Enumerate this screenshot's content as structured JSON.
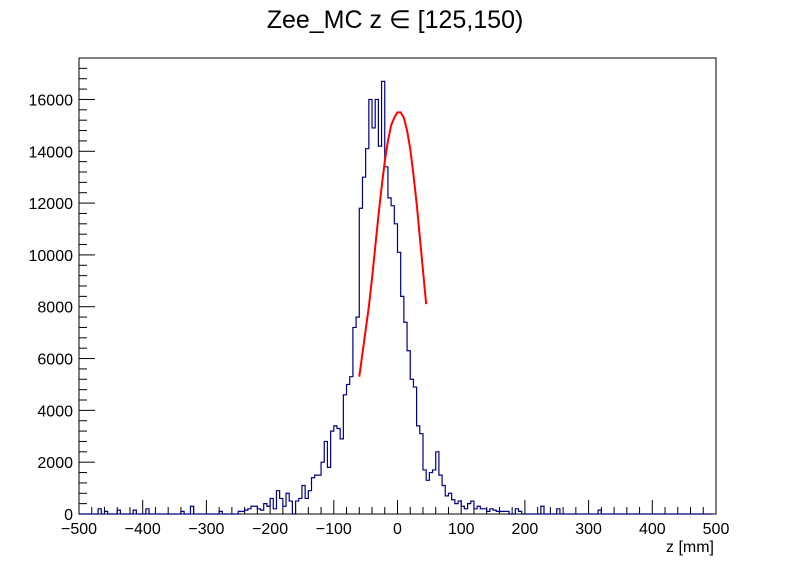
{
  "chart_data": {
    "type": "histogram",
    "title": "Zee_MC z  ∈ [125,150)",
    "xlabel": "z [mm]",
    "ylabel": "",
    "xlim": [
      -500,
      500
    ],
    "ylim": [
      0,
      17600
    ],
    "bin_width": 5,
    "x_ticks": [
      -500,
      -400,
      -300,
      -200,
      -100,
      0,
      100,
      200,
      300,
      400,
      500
    ],
    "x_tick_labels": [
      "−500",
      "−400",
      "−300",
      "−200",
      "−100",
      "0",
      "100",
      "200",
      "300",
      "400",
      "500"
    ],
    "y_ticks": [
      0,
      2000,
      4000,
      6000,
      8000,
      10000,
      12000,
      14000,
      16000
    ],
    "y_tick_labels": [
      "0",
      "2000",
      "4000",
      "6000",
      "8000",
      "10000",
      "12000",
      "14000",
      "16000"
    ],
    "colors": {
      "histogram": "#000080",
      "fit": "#ff0000",
      "frame": "#000000"
    },
    "series": [
      {
        "kind": "histogram",
        "bin_start": -500,
        "values": [
          0,
          0,
          0,
          0,
          0,
          0,
          200,
          0,
          100,
          0,
          0,
          0,
          150,
          0,
          0,
          0,
          0,
          150,
          0,
          0,
          0,
          200,
          0,
          0,
          0,
          0,
          0,
          0,
          0,
          0,
          0,
          0,
          100,
          0,
          0,
          300,
          0,
          0,
          0,
          0,
          0,
          0,
          0,
          0,
          100,
          0,
          0,
          0,
          0,
          0,
          100,
          100,
          150,
          200,
          300,
          300,
          200,
          150,
          400,
          300,
          600,
          200,
          900,
          600,
          300,
          800,
          500,
          0,
          500,
          600,
          1100,
          600,
          900,
          1400,
          1500,
          1500,
          2000,
          2800,
          1800,
          3200,
          3400,
          3300,
          2900,
          4600,
          5000,
          5300,
          7200,
          7600,
          11800,
          13000,
          14100,
          16000,
          14900,
          16000,
          14200,
          16700,
          13400,
          12200,
          11900,
          11200,
          10100,
          8400,
          7400,
          6300,
          5200,
          4900,
          3400,
          3100,
          1700,
          1300,
          1600,
          1700,
          2400,
          1500,
          1100,
          700,
          800,
          550,
          400,
          500,
          300,
          200,
          400,
          500,
          200,
          300,
          200,
          200,
          100,
          200,
          150,
          100,
          100,
          100,
          100,
          0,
          0,
          200,
          100,
          0,
          0,
          0,
          0,
          0,
          0,
          300,
          0,
          0,
          0,
          0,
          200,
          0,
          0,
          0,
          0,
          0,
          0,
          0,
          0,
          0,
          0,
          0,
          0,
          150,
          0,
          0,
          0,
          0,
          0,
          0,
          0,
          0,
          0,
          0,
          0,
          0,
          0,
          0,
          0,
          0,
          0,
          0,
          0,
          0,
          0,
          0,
          0,
          0,
          0,
          0,
          0,
          0,
          0,
          0,
          0,
          0,
          0,
          0,
          0
        ]
      },
      {
        "kind": "fit",
        "name": "",
        "x": [
          -60,
          -55,
          -50,
          -45,
          -40,
          -35,
          -30,
          -25,
          -20,
          -15,
          -10,
          -5,
          0,
          5,
          10,
          15,
          20,
          25,
          30,
          35,
          40,
          45
        ],
        "y": [
          5300,
          6200,
          7100,
          8000,
          9100,
          10300,
          11500,
          12600,
          13600,
          14400,
          15000,
          15300,
          15500,
          15500,
          15300,
          14800,
          14100,
          13100,
          12000,
          10700,
          9400,
          8100
        ]
      }
    ]
  }
}
